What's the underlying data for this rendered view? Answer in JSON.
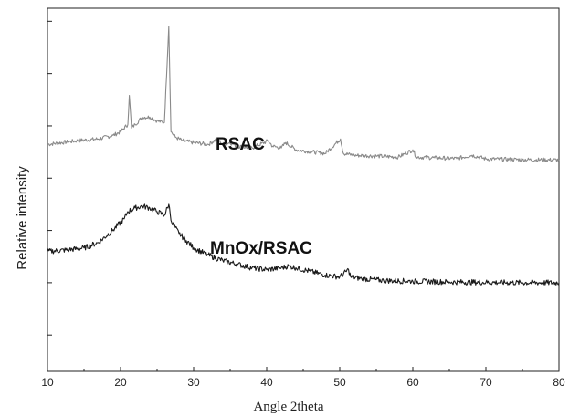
{
  "chart_data": {
    "type": "line",
    "xlabel": "Angle 2theta",
    "ylabel": "Relative intensity",
    "xlim": [
      10,
      80
    ],
    "ylim": [
      0,
      100
    ],
    "xticks": [
      10,
      20,
      30,
      40,
      50,
      60,
      70,
      80
    ],
    "grid": false,
    "legend": "none",
    "series": [
      {
        "name": "RSAC",
        "color": "#8a8a8a",
        "x": [
          10,
          14,
          17,
          19,
          20,
          21,
          21.2,
          21.5,
          22,
          23,
          24,
          25,
          26,
          26.6,
          26.9,
          27.5,
          28.5,
          30,
          32,
          33.2,
          34,
          35,
          36,
          38,
          40.2,
          40.8,
          42,
          42.6,
          44,
          46,
          48,
          50.1,
          50.5,
          52,
          55,
          58,
          60,
          60.5,
          63,
          66,
          68.1,
          70,
          75,
          80
        ],
        "y": [
          62.5,
          63.5,
          64,
          65,
          66,
          68,
          76,
          67,
          68,
          70,
          70,
          69,
          68.5,
          95,
          66,
          64.5,
          63.5,
          63,
          62.5,
          64,
          62.5,
          63,
          62,
          61.5,
          63.5,
          62,
          61.5,
          63,
          61,
          60.5,
          60,
          64,
          60,
          59.5,
          59.3,
          59,
          61,
          59,
          58.8,
          58.6,
          59.5,
          58.5,
          58.3,
          58.2
        ]
      },
      {
        "name": "MnOx/RSAC",
        "color": "#1a1a1a",
        "x": [
          10,
          13,
          15,
          17,
          19,
          20.5,
          21,
          22,
          23,
          24,
          25,
          26,
          26.6,
          27,
          28,
          29,
          30,
          32,
          34,
          36,
          38,
          40,
          42,
          43,
          44,
          46,
          48,
          50,
          51.2,
          51.5,
          53,
          56,
          60,
          65,
          70,
          75,
          80
        ],
        "y": [
          33,
          33.5,
          34,
          35.5,
          39,
          42,
          44,
          45,
          45.5,
          45,
          44,
          43,
          46,
          41,
          38,
          36,
          34,
          32,
          30.5,
          29.5,
          28.5,
          28,
          28.5,
          29,
          28.5,
          27.5,
          26.5,
          26,
          28,
          26,
          25.5,
          25,
          24.8,
          24.6,
          24.5,
          24.4,
          24.4
        ]
      }
    ],
    "annotations": [
      "RSAC",
      "MnOx/RSAC"
    ]
  }
}
